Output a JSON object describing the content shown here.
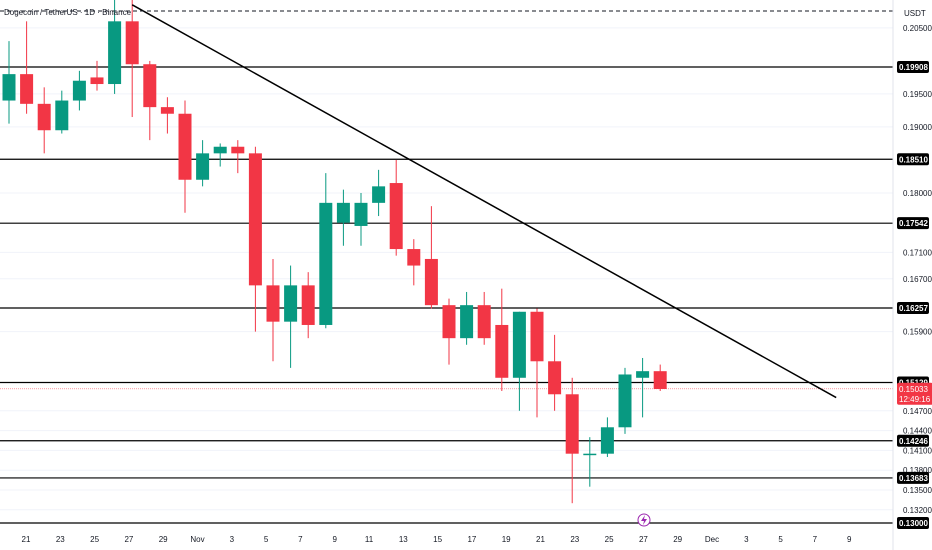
{
  "chart_data": {
    "type": "candlestick",
    "title": "Dogecoin / TetherUS · 1D · Binance",
    "currency": "USDT",
    "colors": {
      "up": "#089981",
      "down": "#f23645",
      "line": "#000000",
      "grid": "#f0f3fa",
      "current": "#f23645"
    },
    "y_ticks": [
      0.205,
      0.195,
      0.19,
      0.18,
      0.171,
      0.167,
      0.159,
      0.147,
      0.144,
      0.141,
      0.138,
      0.135,
      0.132
    ],
    "x_labels": [
      "21",
      "23",
      "25",
      "27",
      "29",
      "Nov",
      "3",
      "5",
      "7",
      "9",
      "11",
      "13",
      "15",
      "17",
      "19",
      "21",
      "23",
      "25",
      "27",
      "29",
      "Dec",
      "3",
      "5",
      "7",
      "9"
    ],
    "levels": [
      0.19908,
      0.1851,
      0.17542,
      0.16257,
      0.15129,
      0.14246,
      0.13683,
      0.13
    ],
    "current_price": "0.15033",
    "countdown": "12:49:16",
    "ohlc": [
      {
        "o": 0.194,
        "h": 0.203,
        "l": 0.1905,
        "c": 0.198
      },
      {
        "o": 0.198,
        "h": 0.206,
        "l": 0.192,
        "c": 0.1935
      },
      {
        "o": 0.1935,
        "h": 0.196,
        "l": 0.186,
        "c": 0.1895
      },
      {
        "o": 0.1895,
        "h": 0.1955,
        "l": 0.189,
        "c": 0.194
      },
      {
        "o": 0.194,
        "h": 0.1985,
        "l": 0.1925,
        "c": 0.197
      },
      {
        "o": 0.1975,
        "h": 0.2,
        "l": 0.1955,
        "c": 0.1965
      },
      {
        "o": 0.1965,
        "h": 0.21,
        "l": 0.195,
        "c": 0.206
      },
      {
        "o": 0.206,
        "h": 0.2105,
        "l": 0.1915,
        "c": 0.1995
      },
      {
        "o": 0.1995,
        "h": 0.2,
        "l": 0.188,
        "c": 0.193
      },
      {
        "o": 0.193,
        "h": 0.1945,
        "l": 0.189,
        "c": 0.192
      },
      {
        "o": 0.192,
        "h": 0.194,
        "l": 0.177,
        "c": 0.182
      },
      {
        "o": 0.182,
        "h": 0.188,
        "l": 0.181,
        "c": 0.186
      },
      {
        "o": 0.186,
        "h": 0.1875,
        "l": 0.184,
        "c": 0.187
      },
      {
        "o": 0.187,
        "h": 0.188,
        "l": 0.183,
        "c": 0.186
      },
      {
        "o": 0.186,
        "h": 0.187,
        "l": 0.159,
        "c": 0.166
      },
      {
        "o": 0.166,
        "h": 0.17,
        "l": 0.1545,
        "c": 0.1605
      },
      {
        "o": 0.1605,
        "h": 0.169,
        "l": 0.1535,
        "c": 0.166
      },
      {
        "o": 0.166,
        "h": 0.168,
        "l": 0.158,
        "c": 0.16
      },
      {
        "o": 0.16,
        "h": 0.183,
        "l": 0.1595,
        "c": 0.1785
      },
      {
        "o": 0.1755,
        "h": 0.1805,
        "l": 0.172,
        "c": 0.1785
      },
      {
        "o": 0.175,
        "h": 0.18,
        "l": 0.172,
        "c": 0.1785
      },
      {
        "o": 0.1785,
        "h": 0.1835,
        "l": 0.1765,
        "c": 0.181
      },
      {
        "o": 0.1815,
        "h": 0.185,
        "l": 0.1705,
        "c": 0.1715
      },
      {
        "o": 0.1715,
        "h": 0.173,
        "l": 0.166,
        "c": 0.169
      },
      {
        "o": 0.17,
        "h": 0.178,
        "l": 0.1625,
        "c": 0.163
      },
      {
        "o": 0.163,
        "h": 0.164,
        "l": 0.154,
        "c": 0.158
      },
      {
        "o": 0.158,
        "h": 0.165,
        "l": 0.157,
        "c": 0.163
      },
      {
        "o": 0.163,
        "h": 0.165,
        "l": 0.157,
        "c": 0.158
      },
      {
        "o": 0.16,
        "h": 0.1655,
        "l": 0.15,
        "c": 0.152
      },
      {
        "o": 0.152,
        "h": 0.162,
        "l": 0.147,
        "c": 0.162
      },
      {
        "o": 0.162,
        "h": 0.1625,
        "l": 0.146,
        "c": 0.1545
      },
      {
        "o": 0.1545,
        "h": 0.1585,
        "l": 0.147,
        "c": 0.1495
      },
      {
        "o": 0.1495,
        "h": 0.152,
        "l": 0.133,
        "c": 0.1405
      },
      {
        "o": 0.1405,
        "h": 0.143,
        "l": 0.1355,
        "c": 0.1405
      },
      {
        "o": 0.1405,
        "h": 0.146,
        "l": 0.14,
        "c": 0.1445
      },
      {
        "o": 0.1445,
        "h": 0.1535,
        "l": 0.1435,
        "c": 0.1525
      },
      {
        "o": 0.152,
        "h": 0.155,
        "l": 0.146,
        "c": 0.153
      },
      {
        "o": 0.153,
        "h": 0.154,
        "l": 0.15,
        "c": 0.1503
      }
    ],
    "trendline": [
      {
        "i": 7,
        "y": 0.2085
      },
      {
        "i": 47,
        "y": 0.149
      }
    ]
  }
}
